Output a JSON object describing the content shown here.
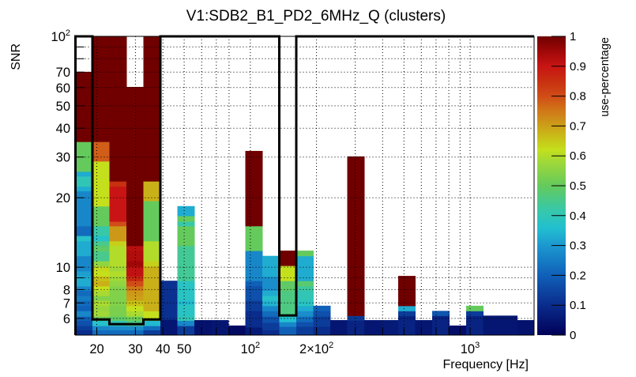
{
  "chart_data": {
    "type": "heatmap",
    "title": "V1:SDB2_B1_PD2_6MHz_Q (clusters)",
    "xlabel": "Frequency [Hz]",
    "ylabel": "SNR",
    "zlabel": "use-percentage",
    "xscale": "log",
    "yscale": "log",
    "xlim": [
      16,
      1955
    ],
    "ylim": [
      5.08,
      100
    ],
    "zlim": [
      0,
      1
    ],
    "grid": true,
    "legend": "colorbar-right",
    "x_bins": {
      "count": 27,
      "min": 16,
      "max": 1955,
      "spacing": "log"
    },
    "x_ticks": [
      {
        "value": 20,
        "text": "20"
      },
      {
        "value": 30,
        "text": "30"
      },
      {
        "value": 40,
        "text": "40"
      },
      {
        "value": 50,
        "text": "50"
      },
      {
        "value": 100,
        "text": "10",
        "sup": "2"
      },
      {
        "value": 200,
        "text": "2×10",
        "sup": "2"
      },
      {
        "value": 1000,
        "text": "10",
        "sup": "3"
      }
    ],
    "x_grid": [
      20,
      30,
      40,
      50,
      60,
      70,
      80,
      100,
      200,
      300,
      400,
      500,
      600,
      700,
      800,
      900,
      1000
    ],
    "y_ticks": [
      {
        "value": 100,
        "text": "10",
        "sup": "2"
      },
      {
        "value": 70,
        "text": "70"
      },
      {
        "value": 60,
        "text": "60"
      },
      {
        "value": 50,
        "text": "50"
      },
      {
        "value": 40,
        "text": "40"
      },
      {
        "value": 30,
        "text": "30"
      },
      {
        "value": 20,
        "text": "20"
      },
      {
        "value": 10,
        "text": "10"
      },
      {
        "value": 8,
        "text": "8"
      },
      {
        "value": 7,
        "text": "7"
      },
      {
        "value": 6,
        "text": "6"
      }
    ],
    "y_grid": [
      6,
      7,
      8,
      9,
      10,
      20,
      30,
      40,
      50,
      60,
      70,
      80,
      90
    ],
    "z_ticks": [
      {
        "value": 0,
        "text": "0"
      },
      {
        "value": 0.1,
        "text": "0.1"
      },
      {
        "value": 0.2,
        "text": "0.2"
      },
      {
        "value": 0.3,
        "text": "0.3"
      },
      {
        "value": 0.4,
        "text": "0.4"
      },
      {
        "value": 0.5,
        "text": "0.5"
      },
      {
        "value": 0.6,
        "text": "0.6"
      },
      {
        "value": 0.7,
        "text": "0.7"
      },
      {
        "value": 0.8,
        "text": "0.8"
      },
      {
        "value": 0.9,
        "text": "0.9"
      },
      {
        "value": 1,
        "text": "1"
      }
    ],
    "palette": [
      {
        "v": 0.0,
        "color": "#000058"
      },
      {
        "v": 0.1,
        "color": "#0a2c8c"
      },
      {
        "v": 0.2,
        "color": "#1060b8"
      },
      {
        "v": 0.3,
        "color": "#1c98d0"
      },
      {
        "v": 0.36,
        "color": "#22c0d0"
      },
      {
        "v": 0.42,
        "color": "#38c8a8"
      },
      {
        "v": 0.5,
        "color": "#64ca5c"
      },
      {
        "v": 0.58,
        "color": "#a0d838"
      },
      {
        "v": 0.62,
        "color": "#c4e01c"
      },
      {
        "v": 0.66,
        "color": "#c8c018"
      },
      {
        "v": 0.7,
        "color": "#cca018"
      },
      {
        "v": 0.76,
        "color": "#d07018"
      },
      {
        "v": 0.8,
        "color": "#d04c18"
      },
      {
        "v": 0.85,
        "color": "#c83010"
      },
      {
        "v": 0.9,
        "color": "#c81414"
      },
      {
        "v": 0.95,
        "color": "#a00808"
      },
      {
        "v": 1.0,
        "color": "#700000"
      }
    ],
    "cell_format": "[snr_low, snr_high, use_percentage]",
    "columns": [
      {
        "bin": 0,
        "cells": [
          [
            5.08,
            5.35,
            0.1
          ],
          [
            5.35,
            5.58,
            0.13
          ],
          [
            5.58,
            5.88,
            0.17
          ],
          [
            5.88,
            6.13,
            0.2
          ],
          [
            6.13,
            6.48,
            0.27
          ],
          [
            6.48,
            6.81,
            0.2
          ],
          [
            6.81,
            7.18,
            0.22
          ],
          [
            7.18,
            7.53,
            0.25
          ],
          [
            7.53,
            7.94,
            0.22
          ],
          [
            7.94,
            8.29,
            0.27
          ],
          [
            8.29,
            9.16,
            0.33
          ],
          [
            9.16,
            9.63,
            0.31
          ],
          [
            9.63,
            11.2,
            0.27
          ],
          [
            11.2,
            13.0,
            0.33
          ],
          [
            13.0,
            13.7,
            0.37
          ],
          [
            13.7,
            15.1,
            0.22
          ],
          [
            15.1,
            21.4,
            0.27
          ],
          [
            21.4,
            22.4,
            0.33
          ],
          [
            22.4,
            24.8,
            0.4
          ],
          [
            24.8,
            26.0,
            0.33
          ],
          [
            26.0,
            35.0,
            0.5
          ],
          [
            35.0,
            70.2,
            1.0
          ]
        ]
      },
      {
        "bin": 1,
        "cells": [
          [
            5.08,
            5.35,
            0.22
          ],
          [
            5.35,
            5.58,
            0.27
          ],
          [
            5.58,
            5.88,
            0.37
          ],
          [
            5.88,
            6.13,
            0.51
          ],
          [
            6.13,
            6.47,
            0.58
          ],
          [
            6.47,
            6.81,
            0.57
          ],
          [
            6.81,
            7.18,
            0.59
          ],
          [
            7.18,
            7.53,
            0.54
          ],
          [
            7.53,
            7.94,
            0.59
          ],
          [
            7.94,
            8.29,
            0.62
          ],
          [
            8.29,
            8.74,
            0.68
          ],
          [
            8.74,
            9.16,
            0.66
          ],
          [
            9.16,
            9.63,
            0.62
          ],
          [
            9.63,
            10.1,
            0.63
          ],
          [
            10.1,
            10.65,
            0.56
          ],
          [
            10.65,
            11.75,
            0.45
          ],
          [
            11.75,
            12.4,
            0.49
          ],
          [
            12.4,
            13.0,
            0.45
          ],
          [
            13.0,
            13.7,
            0.37
          ],
          [
            13.7,
            15.1,
            0.42
          ],
          [
            15.1,
            18.4,
            0.5
          ],
          [
            18.4,
            28.8,
            0.62
          ],
          [
            28.8,
            35.0,
            0.78
          ],
          [
            35.0,
            100,
            1.0
          ]
        ]
      },
      {
        "bin": 2,
        "cells": [
          [
            5.08,
            5.35,
            0.22
          ],
          [
            5.35,
            5.58,
            0.28
          ],
          [
            5.58,
            5.88,
            0.4
          ],
          [
            5.88,
            6.13,
            0.49
          ],
          [
            6.13,
            6.81,
            0.53
          ],
          [
            6.81,
            8.29,
            0.54
          ],
          [
            8.29,
            8.74,
            0.56
          ],
          [
            8.74,
            9.16,
            0.58
          ],
          [
            9.16,
            9.63,
            0.6
          ],
          [
            9.63,
            10.1,
            0.58
          ],
          [
            10.1,
            12.4,
            0.6
          ],
          [
            12.4,
            13.0,
            0.64
          ],
          [
            13.0,
            15.1,
            0.71
          ],
          [
            15.1,
            15.8,
            0.8
          ],
          [
            15.8,
            22.4,
            0.9
          ],
          [
            22.4,
            23.6,
            0.85
          ],
          [
            23.6,
            100,
            1.0
          ]
        ]
      },
      {
        "bin": 3,
        "cells": [
          [
            5.08,
            5.35,
            0.22
          ],
          [
            5.35,
            5.58,
            0.28
          ],
          [
            5.58,
            5.88,
            0.46
          ],
          [
            5.88,
            6.13,
            0.51
          ],
          [
            6.13,
            6.47,
            0.59
          ],
          [
            6.47,
            6.81,
            0.62
          ],
          [
            6.81,
            7.18,
            0.66
          ],
          [
            7.18,
            7.53,
            0.7
          ],
          [
            7.53,
            7.94,
            0.71
          ],
          [
            7.94,
            8.29,
            0.75
          ],
          [
            8.29,
            8.74,
            0.8
          ],
          [
            8.74,
            9.16,
            0.86
          ],
          [
            9.16,
            10.1,
            0.91
          ],
          [
            10.1,
            10.65,
            0.95
          ],
          [
            10.65,
            11.8,
            0.93
          ],
          [
            11.8,
            12.4,
            0.92
          ],
          [
            12.4,
            60.4,
            1.0
          ]
        ]
      },
      {
        "bin": 4,
        "cells": [
          [
            5.08,
            5.35,
            0.13
          ],
          [
            5.35,
            5.58,
            0.22
          ],
          [
            5.58,
            5.88,
            0.35
          ],
          [
            5.88,
            6.47,
            0.62
          ],
          [
            6.47,
            10.1,
            0.68
          ],
          [
            10.1,
            10.65,
            0.64
          ],
          [
            10.65,
            13.0,
            0.6
          ],
          [
            13.0,
            19.4,
            0.5
          ],
          [
            19.4,
            23.6,
            0.68
          ],
          [
            23.6,
            100,
            1.0
          ]
        ]
      },
      {
        "bin": 5,
        "cells": [
          [
            5.08,
            5.94,
            0.05
          ],
          [
            5.94,
            8.74,
            0.11
          ]
        ]
      },
      {
        "bin": 6,
        "cells": [
          [
            5.08,
            5.58,
            0.13
          ],
          [
            5.58,
            5.88,
            0.27
          ],
          [
            5.88,
            6.13,
            0.4
          ],
          [
            6.13,
            6.9,
            0.38
          ],
          [
            6.9,
            7.18,
            0.35
          ],
          [
            7.18,
            8.74,
            0.38
          ],
          [
            8.74,
            12.4,
            0.44
          ],
          [
            12.4,
            15.1,
            0.5
          ],
          [
            15.1,
            15.8,
            0.42
          ],
          [
            15.8,
            16.7,
            0.5
          ],
          [
            16.7,
            18.4,
            0.33
          ]
        ]
      },
      {
        "bin": 7,
        "cells": [
          [
            5.08,
            5.9,
            0.04
          ]
        ]
      },
      {
        "bin": 8,
        "cells": [
          [
            5.08,
            5.9,
            0.05
          ]
        ]
      },
      {
        "bin": 9,
        "cells": [
          [
            5.08,
            5.59,
            0.02
          ]
        ]
      },
      {
        "bin": 10,
        "cells": [
          [
            5.08,
            5.5,
            0.06
          ],
          [
            5.5,
            6.48,
            0.1
          ],
          [
            6.48,
            7.18,
            0.13
          ],
          [
            7.18,
            8.29,
            0.17
          ],
          [
            8.29,
            8.74,
            0.2
          ],
          [
            8.74,
            11.8,
            0.27
          ],
          [
            11.8,
            15.1,
            0.5
          ],
          [
            15.1,
            31.9,
            1.0
          ]
        ]
      },
      {
        "bin": 11,
        "cells": [
          [
            5.08,
            5.35,
            0.1
          ],
          [
            5.35,
            5.76,
            0.13
          ],
          [
            5.76,
            6.13,
            0.17
          ],
          [
            6.13,
            6.47,
            0.22
          ],
          [
            6.47,
            6.81,
            0.27
          ],
          [
            6.81,
            7.18,
            0.34
          ],
          [
            7.18,
            7.53,
            0.37
          ],
          [
            7.53,
            7.94,
            0.33
          ],
          [
            7.94,
            9.12,
            0.28
          ],
          [
            9.12,
            11.2,
            0.33
          ]
        ]
      },
      {
        "bin": 12,
        "cells": [
          [
            5.08,
            5.54,
            0.2
          ],
          [
            5.54,
            5.8,
            0.27
          ],
          [
            5.8,
            6.13,
            0.36
          ],
          [
            6.13,
            7.94,
            0.46
          ],
          [
            7.94,
            8.74,
            0.49
          ],
          [
            8.74,
            10.16,
            0.62
          ],
          [
            10.16,
            11.8,
            1.0
          ]
        ]
      },
      {
        "bin": 13,
        "cells": [
          [
            5.08,
            5.54,
            0.13
          ],
          [
            5.54,
            5.8,
            0.17
          ],
          [
            5.8,
            6.13,
            0.22
          ],
          [
            6.13,
            6.47,
            0.28
          ],
          [
            6.47,
            6.81,
            0.33
          ],
          [
            6.81,
            7.18,
            0.38
          ],
          [
            7.18,
            7.94,
            0.4
          ],
          [
            7.94,
            8.29,
            0.43
          ],
          [
            8.29,
            8.74,
            0.48
          ],
          [
            8.74,
            11.2,
            0.33
          ],
          [
            11.2,
            11.8,
            0.5
          ]
        ]
      },
      {
        "bin": 14,
        "cells": [
          [
            5.08,
            5.54,
            0.1
          ],
          [
            5.54,
            6.13,
            0.13
          ],
          [
            6.13,
            6.47,
            0.17
          ],
          [
            6.47,
            6.81,
            0.2
          ]
        ]
      },
      {
        "bin": 15,
        "cells": [
          [
            5.08,
            5.9,
            0.05
          ]
        ]
      },
      {
        "bin": 16,
        "cells": [
          [
            5.08,
            5.9,
            0.08
          ],
          [
            5.9,
            6.17,
            0.13
          ],
          [
            6.17,
            30.2,
            1.0
          ]
        ]
      },
      {
        "bin": 17,
        "cells": [
          [
            5.08,
            5.9,
            0.05
          ]
        ]
      },
      {
        "bin": 18,
        "cells": [
          [
            5.08,
            5.9,
            0.06
          ]
        ]
      },
      {
        "bin": 19,
        "cells": [
          [
            5.08,
            6.17,
            0.08
          ],
          [
            6.17,
            6.47,
            0.13
          ],
          [
            6.47,
            6.81,
            0.33
          ],
          [
            6.81,
            9.17,
            1.0
          ]
        ]
      },
      {
        "bin": 20,
        "cells": [
          [
            5.08,
            5.9,
            0.05
          ]
        ]
      },
      {
        "bin": 21,
        "cells": [
          [
            5.08,
            6.17,
            0.08
          ],
          [
            6.17,
            6.47,
            0.18
          ]
        ]
      },
      {
        "bin": 22,
        "cells": [
          [
            5.08,
            5.59,
            0.03
          ]
        ]
      },
      {
        "bin": 23,
        "cells": [
          [
            5.08,
            6.17,
            0.08
          ],
          [
            6.17,
            6.47,
            0.13
          ],
          [
            6.47,
            6.81,
            0.5
          ]
        ]
      },
      {
        "bin": 24,
        "cells": [
          [
            5.08,
            6.17,
            0.05
          ]
        ]
      },
      {
        "bin": 25,
        "cells": [
          [
            5.08,
            6.17,
            0.05
          ]
        ]
      },
      {
        "bin": 26,
        "cells": [
          [
            5.08,
            5.9,
            0.04
          ]
        ]
      }
    ],
    "cluster_outline": [
      [
        16,
        5.08
      ],
      [
        16,
        100
      ],
      [
        19.12,
        100
      ],
      [
        19.12,
        5.94
      ],
      [
        22.84,
        5.94
      ],
      [
        22.84,
        5.67
      ],
      [
        32.6,
        5.67
      ],
      [
        32.6,
        5.94
      ],
      [
        38.96,
        5.94
      ],
      [
        38.96,
        100
      ],
      [
        135.4,
        100
      ],
      [
        135.4,
        6.18
      ],
      [
        161.8,
        6.18
      ],
      [
        161.8,
        100
      ],
      [
        1955,
        100
      ]
    ]
  }
}
